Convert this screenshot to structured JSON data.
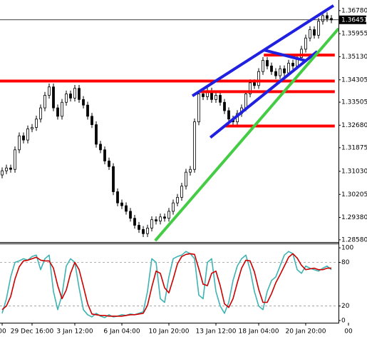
{
  "chart_data": [
    {
      "type": "candlestick",
      "categories": [
        "00",
        null,
        null,
        null,
        null,
        null,
        null,
        "29 Dec 16:00",
        null,
        null,
        null,
        null,
        null,
        null,
        null,
        null,
        null,
        "3 Jan 12:00",
        null,
        null,
        null,
        null,
        null,
        null,
        null,
        null,
        null,
        null,
        "6 Jan 04:00",
        null,
        null,
        null,
        null,
        null,
        null,
        null,
        null,
        null,
        null,
        "10 Jan 20:00",
        null,
        null,
        null,
        null,
        null,
        null,
        null,
        null,
        null,
        null,
        "13 Jan 12:00",
        null,
        null,
        null,
        null,
        null,
        null,
        null,
        null,
        null,
        "18 Jan 04:00",
        null,
        null,
        null,
        null,
        null,
        null,
        null,
        null,
        null,
        null,
        "20 Jan 20:00",
        null,
        null,
        null,
        null,
        null,
        null,
        null,
        null,
        null,
        "00"
      ],
      "open": [
        1.309,
        1.3105,
        1.3115,
        1.311,
        1.318,
        1.323,
        1.3215,
        1.3255,
        1.326,
        1.329,
        1.333,
        1.3375,
        1.3405,
        1.333,
        1.33,
        1.335,
        1.338,
        1.3365,
        1.34,
        1.336,
        1.334,
        1.33,
        1.327,
        1.32,
        1.318,
        1.314,
        1.312,
        1.303,
        1.299,
        1.298,
        1.296,
        1.2935,
        1.291,
        1.2895,
        1.288,
        1.29,
        1.293,
        1.2925,
        1.294,
        1.2935,
        1.296,
        1.299,
        1.301,
        1.305,
        1.31,
        1.311,
        1.328,
        1.338,
        1.337,
        1.339,
        1.336,
        1.3375,
        1.335,
        1.332,
        1.329,
        1.328,
        1.331,
        1.333,
        1.338,
        1.342,
        1.341,
        1.346,
        1.35,
        1.348,
        1.346,
        1.3445,
        1.347,
        1.3455,
        1.349,
        1.348,
        1.351,
        1.354,
        1.358,
        1.361,
        1.359,
        1.364,
        1.366,
        1.365,
        null,
        null,
        null,
        null
      ],
      "high": [
        1.3117,
        1.3127,
        1.3127,
        1.3192,
        1.3242,
        1.3242,
        1.3267,
        1.3272,
        1.3302,
        1.3342,
        1.3387,
        1.3417,
        1.3417,
        1.3342,
        1.3362,
        1.3392,
        1.3392,
        1.3412,
        1.3412,
        1.3372,
        1.3352,
        1.3312,
        1.3282,
        1.3212,
        1.3192,
        1.3152,
        1.3132,
        1.3042,
        1.3002,
        1.2992,
        1.2972,
        1.2947,
        1.2922,
        1.2907,
        1.2912,
        1.2942,
        1.2942,
        1.2952,
        1.2952,
        1.2972,
        1.3002,
        1.3022,
        1.3062,
        1.3112,
        1.3122,
        1.3292,
        1.3392,
        1.3392,
        1.3402,
        1.3402,
        1.3387,
        1.3387,
        1.3362,
        1.3332,
        1.3302,
        1.3322,
        1.3342,
        1.3392,
        1.3432,
        1.3432,
        1.3472,
        1.3512,
        1.3512,
        1.3492,
        1.3472,
        1.3482,
        1.3482,
        1.3502,
        1.3502,
        1.3522,
        1.3552,
        1.3592,
        1.3622,
        1.3622,
        1.3652,
        1.3672,
        1.3672,
        1.3662,
        null,
        null,
        null,
        null
      ],
      "low": [
        1.3078,
        1.3093,
        1.3098,
        1.3098,
        1.3168,
        1.3203,
        1.3203,
        1.3243,
        1.3248,
        1.3278,
        1.3318,
        1.3363,
        1.3318,
        1.3288,
        1.3288,
        1.3338,
        1.3353,
        1.3353,
        1.3348,
        1.3328,
        1.3288,
        1.3258,
        1.3188,
        1.3168,
        1.3128,
        1.3108,
        1.3018,
        1.2978,
        1.2968,
        1.2948,
        1.2923,
        1.2898,
        1.2883,
        1.2868,
        1.2868,
        1.2888,
        1.2913,
        1.2913,
        1.2923,
        1.2923,
        1.2948,
        1.2978,
        1.2998,
        1.3038,
        1.3088,
        1.3098,
        1.3268,
        1.3358,
        1.3358,
        1.3348,
        1.3348,
        1.3338,
        1.3308,
        1.3278,
        1.3268,
        1.3268,
        1.3298,
        1.3318,
        1.3368,
        1.3398,
        1.3398,
        1.3448,
        1.3468,
        1.3448,
        1.3433,
        1.3433,
        1.3443,
        1.3443,
        1.3468,
        1.3468,
        1.3498,
        1.3528,
        1.3568,
        1.3578,
        1.3578,
        1.3628,
        1.3638,
        1.3633,
        null,
        null,
        null,
        null
      ],
      "close": [
        1.3105,
        1.3115,
        1.311,
        1.318,
        1.323,
        1.3215,
        1.3255,
        1.326,
        1.329,
        1.333,
        1.3375,
        1.3405,
        1.333,
        1.33,
        1.335,
        1.338,
        1.3365,
        1.34,
        1.336,
        1.334,
        1.33,
        1.327,
        1.32,
        1.318,
        1.314,
        1.312,
        1.303,
        1.299,
        1.298,
        1.296,
        1.2935,
        1.291,
        1.2895,
        1.288,
        1.29,
        1.293,
        1.2925,
        1.294,
        1.2935,
        1.296,
        1.299,
        1.301,
        1.305,
        1.31,
        1.311,
        1.328,
        1.338,
        1.337,
        1.339,
        1.336,
        1.3375,
        1.335,
        1.332,
        1.329,
        1.328,
        1.331,
        1.333,
        1.338,
        1.342,
        1.341,
        1.346,
        1.35,
        1.348,
        1.346,
        1.3445,
        1.347,
        1.3455,
        1.349,
        1.348,
        1.351,
        1.354,
        1.358,
        1.361,
        1.359,
        1.364,
        1.366,
        1.365,
        1.3645,
        null,
        null,
        null,
        null
      ],
      "up_color": "#ffffff",
      "down_color": "#000000",
      "color": "#000000",
      "ylim": [
        1.285,
        1.3716
      ],
      "yticks": [
        {
          "value": 1.3678,
          "label": "1.36780"
        },
        1.35955,
        {
          "value": 1.3513,
          "label": "1.35130"
        },
        1.34305,
        1.33505,
        {
          "value": 1.3268,
          "label": "1.32680"
        },
        1.31875,
        {
          "value": 1.3103,
          "label": "1.31030"
        },
        1.30205,
        {
          "value": 1.2938,
          "label": "1.29380"
        },
        {
          "value": 1.2858,
          "label": "1.28580"
        }
      ],
      "last_price": 1.36451,
      "lines": [
        {
          "color": "#ff0000",
          "x": [
            -1,
            77.8
          ],
          "y": [
            1.3426,
            1.3426
          ]
        },
        {
          "color": "#ff0000",
          "x": [
            46.2,
            77.8
          ],
          "y": [
            1.3388,
            1.3388
          ]
        },
        {
          "color": "#ff0000",
          "x": [
            61.2,
            77.8
          ],
          "y": [
            1.3519,
            1.3519
          ]
        },
        {
          "color": "#ff0000",
          "x": [
            52.2,
            77.8
          ],
          "y": [
            1.3265,
            1.3265
          ]
        },
        {
          "color": "#2020e0",
          "x": [
            44.5,
            77.5
          ],
          "y": [
            1.3373,
            1.3696
          ]
        },
        {
          "color": "#2020e0",
          "x": [
            48.7,
            73.7
          ],
          "y": [
            1.3224,
            1.3532
          ]
        },
        {
          "color": "#2020e0",
          "x": [
            61.2,
            71.2
          ],
          "y": [
            1.3537,
            1.3498
          ]
        },
        {
          "color": "#44cc44",
          "x": [
            35.8,
            78.7
          ],
          "y": [
            1.2855,
            1.3614
          ]
        }
      ]
    },
    {
      "type": "line",
      "series": [
        {
          "color": "#3fb3b3",
          "values": [
            10,
            30,
            60,
            80,
            82,
            85,
            83,
            88,
            90,
            70,
            85,
            90,
            40,
            15,
            35,
            75,
            85,
            80,
            45,
            15,
            8,
            5,
            10,
            6,
            4,
            8,
            5,
            6,
            8,
            7,
            9,
            8,
            10,
            12,
            40,
            85,
            80,
            30,
            25,
            60,
            85,
            88,
            90,
            95,
            92,
            85,
            35,
            30,
            80,
            85,
            40,
            20,
            10,
            25,
            55,
            75,
            85,
            90,
            70,
            40,
            20,
            15,
            40,
            55,
            60,
            75,
            90,
            95,
            92,
            70,
            65,
            75,
            72,
            70,
            68,
            72,
            75,
            70,
            null,
            null,
            null,
            null
          ]
        },
        {
          "color": "#cc0000",
          "values": [
            15,
            20,
            33,
            57,
            74,
            82,
            83,
            85,
            87,
            83,
            82,
            82,
            72,
            48,
            30,
            42,
            65,
            80,
            70,
            47,
            23,
            9,
            8,
            7,
            7,
            6,
            6,
            6,
            6,
            7,
            8,
            8,
            9,
            10,
            21,
            46,
            68,
            65,
            45,
            38,
            57,
            78,
            88,
            91,
            92,
            91,
            71,
            50,
            48,
            65,
            68,
            48,
            23,
            18,
            30,
            52,
            72,
            83,
            82,
            67,
            43,
            25,
            25,
            37,
            52,
            63,
            75,
            87,
            92,
            86,
            76,
            70,
            71,
            72,
            70,
            70,
            72,
            72,
            null,
            null,
            null,
            null
          ]
        }
      ],
      "ylim": [
        -3,
        106
      ],
      "yticks": [
        100,
        80,
        20,
        0
      ],
      "levels": [
        80,
        20
      ]
    }
  ]
}
